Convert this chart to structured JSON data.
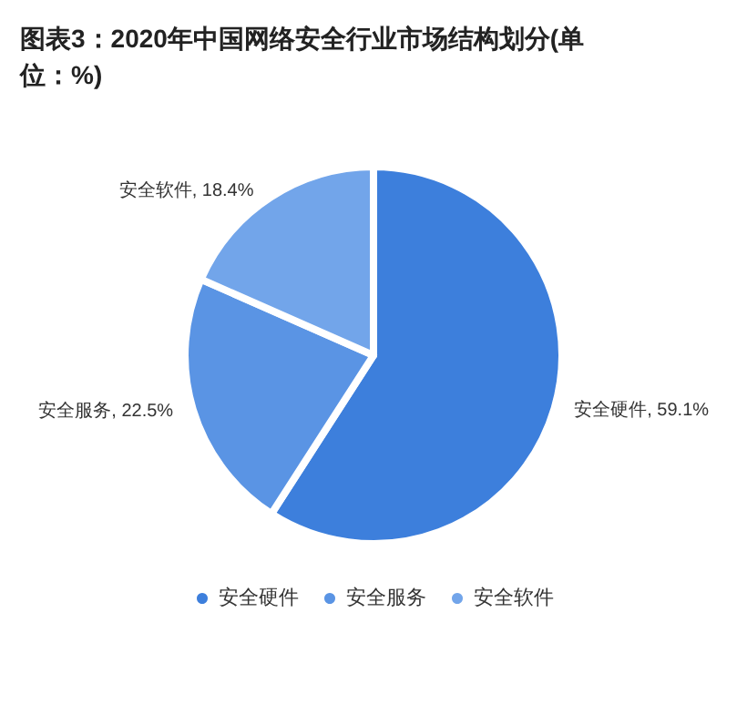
{
  "chart_data": {
    "type": "pie",
    "title": "图表3：2020年中国网络安全行业市场结构划分(单位：%)",
    "categories": [
      "安全硬件",
      "安全服务",
      "安全软件"
    ],
    "values": [
      59.1,
      22.5,
      18.4
    ],
    "value_labels": [
      "安全硬件, 59.1%",
      "安全服务, 22.5%",
      "安全软件, 18.4%"
    ],
    "colors": [
      "#3d7fdc",
      "#5a94e4",
      "#72a5ea"
    ],
    "legend": "bottom"
  }
}
